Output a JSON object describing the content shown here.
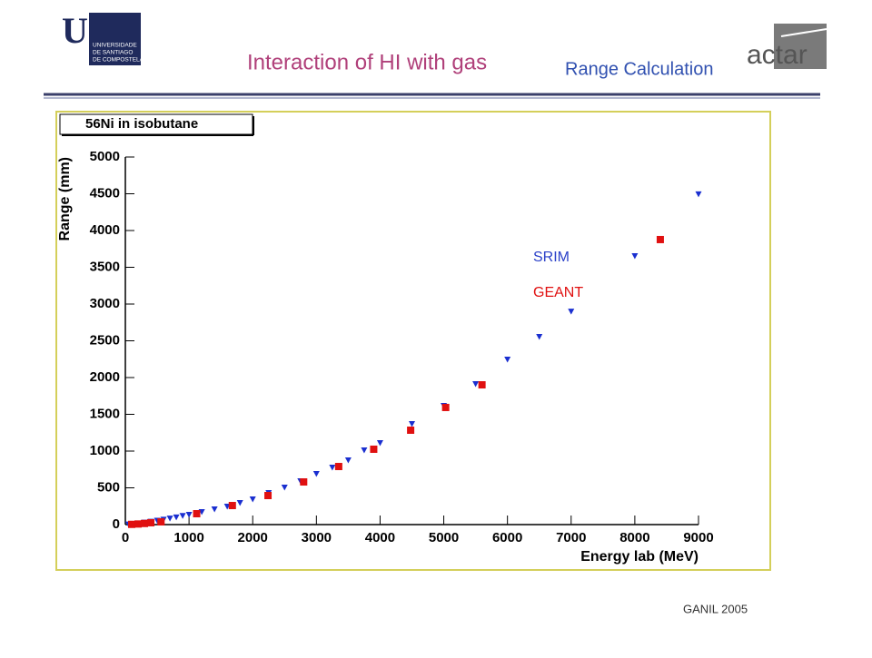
{
  "slide_title": "Interaction of HI with gas",
  "subtitle": "Range Calculation",
  "footer": "GANIL 2005",
  "logos": {
    "usc": "USC",
    "usc_sub": [
      "UNIVERSIDADE",
      "DE SANTIAGO",
      "DE COMPOSTELA"
    ],
    "actar": "actar"
  },
  "chart_data": {
    "type": "scatter",
    "title": "56Ni in isobutane",
    "x_label": "Energy lab (MeV)",
    "y_label": "Range (mm)",
    "xlim": [
      0,
      9000
    ],
    "ylim": [
      0,
      5000
    ],
    "xticks": [
      0,
      1000,
      2000,
      3000,
      4000,
      5000,
      6000,
      7000,
      8000,
      9000
    ],
    "yticks": [
      0,
      500,
      1000,
      1500,
      2000,
      2500,
      3000,
      3500,
      4000,
      4500,
      5000
    ],
    "series": [
      {
        "name": "SRIM",
        "color": "#1a2fd0",
        "marker": "triangle-down",
        "x": [
          50,
          100,
          200,
          300,
          400,
          500,
          600,
          700,
          800,
          900,
          1000,
          1200,
          1400,
          1600,
          1800,
          2000,
          2250,
          2500,
          2750,
          3000,
          3250,
          3500,
          3750,
          4000,
          4500,
          5000,
          5500,
          6000,
          6500,
          7000,
          8000,
          9000
        ],
        "values": [
          4,
          9,
          19,
          30,
          42,
          56,
          70,
          85,
          100,
          120,
          136,
          173,
          210,
          247,
          296,
          346,
          432,
          506,
          593,
          691,
          778,
          877,
          1012,
          1111,
          1370,
          1617,
          1914,
          2247,
          2555,
          2900,
          3654,
          4495
        ]
      },
      {
        "name": "GEANT",
        "color": "#e01010",
        "marker": "square",
        "x": [
          100,
          200,
          300,
          400,
          560,
          1120,
          1680,
          2240,
          2800,
          3350,
          3900,
          4480,
          5030,
          5600,
          8400
        ],
        "values": [
          3,
          8,
          15,
          25,
          37,
          148,
          259,
          395,
          580,
          790,
          1025,
          1284,
          1593,
          1901,
          3877
        ]
      }
    ]
  }
}
